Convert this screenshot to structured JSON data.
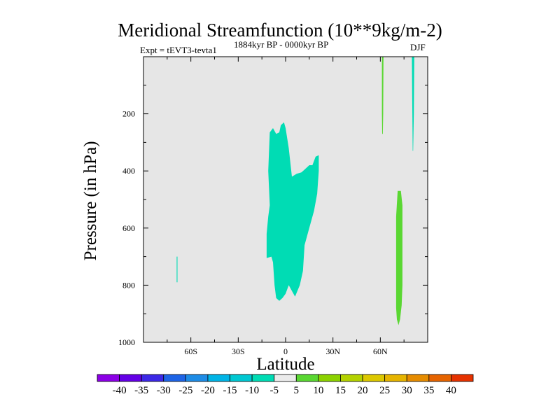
{
  "chart_data": {
    "type": "contour",
    "title": "Meridional Streamfunction (10**9kg/m-2)",
    "subtitle_left": "Expt = tEVT3-tevta1",
    "subtitle_center": "1884kyr BP - 0000kyr BP",
    "subtitle_right": "DJF",
    "xlabel": "Latitude",
    "ylabel": "Pressure (in hPa)",
    "xlim": [
      -90,
      90
    ],
    "ylim": [
      1000,
      0
    ],
    "xticks": [
      {
        "value": -60,
        "label": "60S"
      },
      {
        "value": -30,
        "label": "30S"
      },
      {
        "value": 0,
        "label": "0"
      },
      {
        "value": 30,
        "label": "30N"
      },
      {
        "value": 60,
        "label": "60N"
      }
    ],
    "yticks": [
      {
        "value": 200,
        "label": "200"
      },
      {
        "value": 400,
        "label": "400"
      },
      {
        "value": 600,
        "label": "600"
      },
      {
        "value": 800,
        "label": "800"
      },
      {
        "value": 1000,
        "label": "1000"
      }
    ],
    "background_color": "#e6e6e6",
    "regions": [
      {
        "name": "negative-cell-equatorial",
        "level": "-10 to -5",
        "color": "#00dcb4",
        "points": [
          [
            -10,
            520
          ],
          [
            -11,
            400
          ],
          [
            -10,
            265
          ],
          [
            -8,
            250
          ],
          [
            -6,
            270
          ],
          [
            -4,
            265
          ],
          [
            -3,
            240
          ],
          [
            -1,
            230
          ],
          [
            0,
            250
          ],
          [
            2,
            320
          ],
          [
            4,
            420
          ],
          [
            7,
            410
          ],
          [
            10,
            405
          ],
          [
            12,
            395
          ],
          [
            15,
            380
          ],
          [
            17,
            380
          ],
          [
            19,
            350
          ],
          [
            21,
            345
          ],
          [
            21,
            400
          ],
          [
            20,
            480
          ],
          [
            18,
            540
          ],
          [
            15,
            600
          ],
          [
            12,
            660
          ],
          [
            11,
            750
          ],
          [
            9,
            800
          ],
          [
            6,
            840
          ],
          [
            4,
            820
          ],
          [
            2,
            800
          ],
          [
            0,
            830
          ],
          [
            -2,
            845
          ],
          [
            -4,
            855
          ],
          [
            -6,
            845
          ],
          [
            -7,
            800
          ],
          [
            -8,
            720
          ],
          [
            -9,
            700
          ],
          [
            -12,
            705
          ],
          [
            -12,
            660
          ],
          [
            -12,
            620
          ],
          [
            -11,
            560
          ]
        ]
      },
      {
        "name": "negative-streak-south",
        "level": "-10 to -5",
        "color": "#00dcb4",
        "points": [
          [
            -69,
            700
          ],
          [
            -68.5,
            700
          ],
          [
            -68.5,
            790
          ],
          [
            -69,
            790
          ]
        ]
      },
      {
        "name": "negative-streak-north",
        "level": "-10 to -5",
        "color": "#00dcb4",
        "points": [
          [
            80,
            0
          ],
          [
            81.5,
            0
          ],
          [
            81.2,
            200
          ],
          [
            80.8,
            330
          ],
          [
            80.5,
            330
          ],
          [
            80.2,
            150
          ]
        ]
      },
      {
        "name": "positive-cell-north",
        "level": "5 to 10",
        "color": "#5ad732",
        "points": [
          [
            71,
            470
          ],
          [
            73,
            470
          ],
          [
            74,
            520
          ],
          [
            74,
            650
          ],
          [
            74,
            800
          ],
          [
            73.5,
            870
          ],
          [
            72.5,
            920
          ],
          [
            71.5,
            940
          ],
          [
            70.5,
            920
          ],
          [
            70,
            880
          ],
          [
            70,
            700
          ],
          [
            70,
            560
          ]
        ]
      },
      {
        "name": "positive-streak-north",
        "level": "5 to 10",
        "color": "#5ad732",
        "points": [
          [
            61,
            0
          ],
          [
            62,
            0
          ],
          [
            61.8,
            200
          ],
          [
            61.6,
            270
          ],
          [
            61.2,
            270
          ],
          [
            61,
            200
          ]
        ]
      }
    ],
    "colorbar": {
      "labels": [
        "-40",
        "-35",
        "-30",
        "-25",
        "-20",
        "-15",
        "-10",
        "-5",
        "5",
        "10",
        "15",
        "20",
        "25",
        "30",
        "35",
        "40"
      ],
      "colors": [
        "#8c00e6",
        "#6400e6",
        "#3c28e6",
        "#1e64e6",
        "#1e8ce6",
        "#00b4e6",
        "#00c8d2",
        "#00dcb4",
        "#ebebeb",
        "#5ad732",
        "#8cd200",
        "#b4d200",
        "#dcc800",
        "#e6b400",
        "#e68c00",
        "#e66400",
        "#e63200"
      ]
    }
  }
}
